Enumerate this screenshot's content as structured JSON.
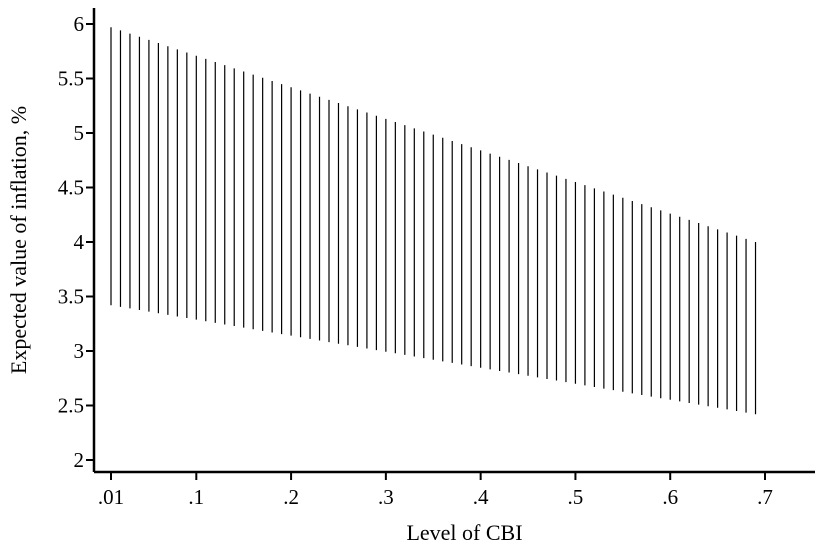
{
  "chart_data": {
    "type": "range-bar",
    "title": "",
    "xlabel": "Level of CBI",
    "ylabel": "Expected value of inflation, %",
    "xlim": [
      0.0,
      0.74
    ],
    "ylim": [
      1.92,
      6.2
    ],
    "x_ticks": [
      {
        "value": 0.01,
        "label": ".01"
      },
      {
        "value": 0.1,
        "label": ".1"
      },
      {
        "value": 0.2,
        "label": ".2"
      },
      {
        "value": 0.3,
        "label": ".3"
      },
      {
        "value": 0.4,
        "label": ".4"
      },
      {
        "value": 0.5,
        "label": ".5"
      },
      {
        "value": 0.6,
        "label": ".6"
      },
      {
        "value": 0.7,
        "label": ".7"
      }
    ],
    "y_ticks": [
      {
        "value": 2,
        "label": "2"
      },
      {
        "value": 2.5,
        "label": "2.5"
      },
      {
        "value": 3,
        "label": "3"
      },
      {
        "value": 3.5,
        "label": "3.5"
      },
      {
        "value": 4,
        "label": "4"
      },
      {
        "value": 4.5,
        "label": "4.5"
      },
      {
        "value": 5,
        "label": "5"
      },
      {
        "value": 5.5,
        "label": "5.5"
      },
      {
        "value": 6,
        "label": "6"
      }
    ],
    "series": [
      {
        "x_start": 0.01,
        "x_end": 0.69,
        "step": 0.01,
        "upper_start": 5.97,
        "upper_end": 4.0,
        "lower_start": 3.42,
        "lower_end": 2.42
      }
    ],
    "grid": false,
    "legend": "none"
  }
}
